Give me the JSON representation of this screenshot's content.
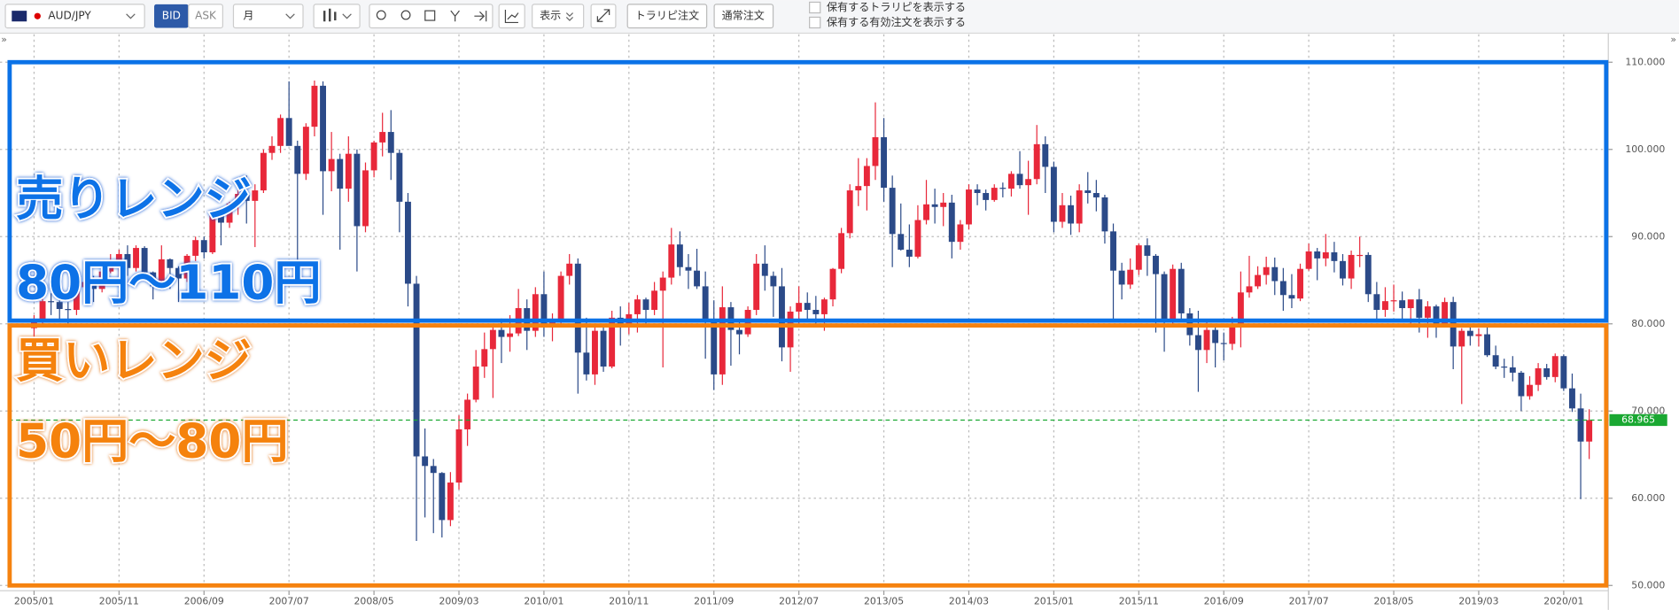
{
  "toolbar": {
    "symbol": "AUD/JPY",
    "bid": "BID",
    "ask": "ASK",
    "period": "月",
    "display": "表示",
    "trarepi_order": "トラリピ注文",
    "normal_order": "通常注文",
    "checkboxes": [
      "保有するトラリピを表示する",
      "保有する有効注文を表示する"
    ]
  },
  "chart_data": {
    "type": "candlestick",
    "up_color": "#e8283a",
    "down_color": "#2b4a88",
    "candles": [
      [
        79.5,
        81,
        78.5,
        80.5
      ],
      [
        80.5,
        83,
        79.8,
        82.6
      ],
      [
        82.6,
        83.5,
        81,
        82.5
      ],
      [
        82.5,
        83,
        80.5,
        81.7
      ],
      [
        81.7,
        82.5,
        80,
        81.6
      ],
      [
        81.6,
        85,
        81,
        84.2
      ],
      [
        84.2,
        86,
        83.2,
        84.8
      ],
      [
        84.8,
        85.5,
        82.5,
        84
      ],
      [
        84,
        86.4,
        83.6,
        86
      ],
      [
        86,
        88,
        85.8,
        87
      ],
      [
        87,
        88.5,
        85.5,
        88
      ],
      [
        88,
        89,
        85.5,
        86.4
      ],
      [
        86.4,
        89,
        86,
        88.7
      ],
      [
        88.7,
        88.9,
        85,
        85.9
      ],
      [
        85.9,
        86,
        82.8,
        84.3
      ],
      [
        84.3,
        89,
        84,
        87.4
      ],
      [
        87.4,
        87.5,
        84,
        86.4
      ],
      [
        86.4,
        86.6,
        82.5,
        85.2
      ],
      [
        85.2,
        88,
        84.8,
        87.8
      ],
      [
        87.8,
        90,
        87.2,
        89.6
      ],
      [
        89.6,
        90,
        87.5,
        88.2
      ],
      [
        88.2,
        93,
        88,
        92.8
      ],
      [
        92.8,
        93.2,
        89,
        91.6
      ],
      [
        91.6,
        94,
        91,
        93.8
      ],
      [
        93.8,
        96,
        92.5,
        94.9
      ],
      [
        94.9,
        97,
        91.5,
        94.1
      ],
      [
        94.1,
        96,
        88.8,
        95.3
      ],
      [
        95.3,
        100,
        95,
        99.6
      ],
      [
        99.6,
        101.5,
        98.8,
        100.4
      ],
      [
        100.4,
        104,
        99.6,
        103.6
      ],
      [
        103.6,
        107.8,
        100.6,
        100.4
      ],
      [
        100.4,
        101,
        87.2,
        97.2
      ],
      [
        97.2,
        103,
        96.5,
        102.6
      ],
      [
        102.6,
        107.9,
        101.5,
        107.3
      ],
      [
        107.3,
        107.8,
        92.5,
        97.5
      ],
      [
        97.5,
        102,
        95.2,
        98.9
      ],
      [
        98.9,
        99.5,
        88.5,
        95.5
      ],
      [
        95.5,
        101.5,
        94,
        99.5
      ],
      [
        99.5,
        100,
        86,
        91.2
      ],
      [
        91.2,
        98.5,
        90.5,
        97.6
      ],
      [
        97.6,
        101,
        96.8,
        100.8
      ],
      [
        100.8,
        104.2,
        99.2,
        102
      ],
      [
        102,
        104.5,
        96.5,
        99.6
      ],
      [
        99.6,
        100,
        90.5,
        94
      ],
      [
        94,
        95,
        82,
        84.6
      ],
      [
        84.6,
        85.5,
        55.1,
        64.8
      ],
      [
        64.8,
        68,
        57.8,
        63.7
      ],
      [
        63.7,
        64.5,
        56,
        62.9
      ],
      [
        62.9,
        63,
        55.5,
        57.5
      ],
      [
        57.5,
        63,
        56.8,
        61.8
      ],
      [
        61.8,
        69.5,
        61,
        67.9
      ],
      [
        67.9,
        72,
        66,
        71.3
      ],
      [
        71.3,
        77,
        71,
        75.1
      ],
      [
        75.1,
        79,
        73.8,
        77.1
      ],
      [
        77.1,
        80,
        71.5,
        79.3
      ],
      [
        79.3,
        80.6,
        75.5,
        78.5
      ],
      [
        78.5,
        81,
        76.8,
        78.9
      ],
      [
        78.9,
        84,
        78.6,
        81.8
      ],
      [
        81.8,
        82.8,
        77,
        79.2
      ],
      [
        79.2,
        84.2,
        78.5,
        83.4
      ],
      [
        83.4,
        86,
        78.5,
        79.6
      ],
      [
        79.6,
        81.2,
        78,
        80.3
      ],
      [
        80.3,
        86,
        80,
        85.5
      ],
      [
        85.5,
        88,
        84.5,
        86.9
      ],
      [
        86.9,
        87.5,
        72,
        76.7
      ],
      [
        76.7,
        80.7,
        73.5,
        74.2
      ],
      [
        74.2,
        80,
        73,
        79.2
      ],
      [
        79.2,
        80,
        74.5,
        75.1
      ],
      [
        75.1,
        81.5,
        74.9,
        80.7
      ],
      [
        80.7,
        82,
        77.5,
        79.8
      ],
      [
        79.8,
        82.4,
        78.8,
        81.1
      ],
      [
        81.1,
        83.3,
        79,
        82.8
      ],
      [
        82.8,
        83,
        79.6,
        81.6
      ],
      [
        81.6,
        84.8,
        81,
        83.8
      ],
      [
        83.8,
        86,
        75,
        85.3
      ],
      [
        85.3,
        91,
        84.5,
        89.1
      ],
      [
        89.1,
        90.6,
        85.5,
        86.5
      ],
      [
        86.5,
        88,
        84,
        86.1
      ],
      [
        86.1,
        88.6,
        84,
        84.3
      ],
      [
        84.3,
        86,
        76,
        80.3
      ],
      [
        80.3,
        82.7,
        72.4,
        74.2
      ],
      [
        74.2,
        84.3,
        73,
        81.9
      ],
      [
        81.9,
        82.5,
        75.2,
        79.3
      ],
      [
        79.3,
        80.5,
        76.5,
        78.8
      ],
      [
        78.8,
        82,
        78.5,
        81.6
      ],
      [
        81.6,
        88,
        81,
        86.9
      ],
      [
        86.9,
        89,
        83.8,
        85.5
      ],
      [
        85.5,
        86,
        80.8,
        84.3
      ],
      [
        84.3,
        86.4,
        75.7,
        77.3
      ],
      [
        77.3,
        82,
        74.5,
        81.4
      ],
      [
        81.4,
        84.3,
        79.8,
        82.4
      ],
      [
        82.4,
        83.6,
        80.5,
        81.6
      ],
      [
        81.6,
        83.2,
        79.8,
        81.1
      ],
      [
        81.1,
        83,
        79.2,
        82.8
      ],
      [
        82.8,
        86.4,
        82,
        86.3
      ],
      [
        86.3,
        91,
        85.8,
        90.4
      ],
      [
        90.4,
        96,
        89.8,
        95.3
      ],
      [
        95.3,
        99,
        93.5,
        95.8
      ],
      [
        95.8,
        99,
        93,
        98.1
      ],
      [
        98.1,
        105.4,
        96.5,
        101.4
      ],
      [
        101.4,
        103.6,
        94,
        95.6
      ],
      [
        95.6,
        97,
        86.5,
        90.3
      ],
      [
        90.3,
        93.8,
        88.4,
        88.5
      ],
      [
        88.5,
        91.4,
        86.5,
        87.7
      ],
      [
        87.7,
        93.6,
        87.5,
        91.9
      ],
      [
        91.9,
        96.5,
        91.4,
        93.7
      ],
      [
        93.7,
        95.5,
        91.5,
        93.4
      ],
      [
        93.4,
        95,
        91.2,
        93.9
      ],
      [
        93.9,
        94.8,
        87.5,
        89.4
      ],
      [
        89.4,
        91.9,
        88.5,
        91.4
      ],
      [
        91.4,
        96,
        90.8,
        95.4
      ],
      [
        95.4,
        96,
        93.6,
        95
      ],
      [
        95,
        95.4,
        93,
        94.2
      ],
      [
        94.2,
        96,
        94,
        95.6
      ],
      [
        95.6,
        96.2,
        94.5,
        95.5
      ],
      [
        95.5,
        97.5,
        94.6,
        97.2
      ],
      [
        97.2,
        99.8,
        95.5,
        95.9
      ],
      [
        95.9,
        98.7,
        92.5,
        96.6
      ],
      [
        96.6,
        102.8,
        96,
        100.6
      ],
      [
        100.6,
        101.5,
        95,
        98
      ],
      [
        98,
        98.6,
        90.5,
        91.7
      ],
      [
        91.7,
        95,
        91,
        93.6
      ],
      [
        93.6,
        94.7,
        90.2,
        91.5
      ],
      [
        91.5,
        96,
        90.5,
        95.3
      ],
      [
        95.3,
        97.4,
        93.8,
        95
      ],
      [
        95,
        96.5,
        92.9,
        94.5
      ],
      [
        94.5,
        94.8,
        89.2,
        90.6
      ],
      [
        90.6,
        91.5,
        80.5,
        86.1
      ],
      [
        86.1,
        87,
        82.8,
        84.5
      ],
      [
        84.5,
        87.5,
        84,
        86.2
      ],
      [
        86.2,
        89.2,
        85.6,
        89
      ],
      [
        89,
        89.8,
        85.5,
        87.8
      ],
      [
        87.8,
        88,
        79,
        85.7
      ],
      [
        85.7,
        86,
        76.8,
        80.3
      ],
      [
        80.3,
        86.8,
        80,
        86.3
      ],
      [
        86.3,
        87,
        80.2,
        81.2
      ],
      [
        81.2,
        81.8,
        77.5,
        78.7
      ],
      [
        78.7,
        81.5,
        72.2,
        77
      ],
      [
        77,
        80.5,
        75.5,
        79.3
      ],
      [
        79.3,
        79.8,
        75,
        77.8
      ],
      [
        77.8,
        79,
        75.8,
        77.7
      ],
      [
        77.7,
        80.8,
        77,
        79.9
      ],
      [
        79.9,
        86,
        77.3,
        83.6
      ],
      [
        83.6,
        87.8,
        83,
        84.3
      ],
      [
        84.3,
        86.6,
        84,
        85.6
      ],
      [
        85.6,
        87.7,
        84.5,
        86.5
      ],
      [
        86.5,
        87.6,
        83.3,
        84.9
      ],
      [
        84.9,
        86.4,
        81.5,
        83.3
      ],
      [
        83.3,
        85.7,
        81.8,
        82.9
      ],
      [
        82.9,
        86.9,
        82.6,
        86.3
      ],
      [
        86.3,
        89.2,
        86.1,
        88.3
      ],
      [
        88.3,
        88.7,
        85,
        87.5
      ],
      [
        87.5,
        90.3,
        86.6,
        88.2
      ],
      [
        88.2,
        89.4,
        85.9,
        87.2
      ],
      [
        87.2,
        88,
        84.4,
        85.2
      ],
      [
        85.2,
        88.4,
        84,
        87.9
      ],
      [
        87.9,
        90,
        86.5,
        87.9
      ],
      [
        87.9,
        88.2,
        82.5,
        83.4
      ],
      [
        83.4,
        84.8,
        80.4,
        81.6
      ],
      [
        81.6,
        84.2,
        80.8,
        82.6
      ],
      [
        82.6,
        84.5,
        81.4,
        82.7
      ],
      [
        82.7,
        83.7,
        80.4,
        81.8
      ],
      [
        81.8,
        82.5,
        80,
        82.8
      ],
      [
        82.8,
        84,
        79,
        80.7
      ],
      [
        80.7,
        82.6,
        78.4,
        82
      ],
      [
        82,
        82.2,
        78.4,
        80
      ],
      [
        80,
        83,
        79.6,
        82.5
      ],
      [
        82.5,
        83.1,
        74.8,
        77.4
      ],
      [
        77.4,
        79.5,
        70.8,
        79.2
      ],
      [
        79.2,
        79.7,
        77.5,
        78.6
      ],
      [
        78.6,
        79.5,
        77.4,
        78.8
      ],
      [
        78.8,
        79.8,
        76.2,
        76.4
      ],
      [
        76.4,
        77.5,
        74.8,
        75.1
      ],
      [
        75.1,
        76,
        73.8,
        75
      ],
      [
        75,
        76.3,
        73.4,
        74.4
      ],
      [
        74.4,
        74.6,
        70,
        71.7
      ],
      [
        71.7,
        74,
        71.3,
        73
      ],
      [
        73,
        75.5,
        72.3,
        74.9
      ],
      [
        74.9,
        75.4,
        73.6,
        73.9
      ],
      [
        73.9,
        76.6,
        73.3,
        76.3
      ],
      [
        76.3,
        76.5,
        72.3,
        72.6
      ],
      [
        72.6,
        74.3,
        69.9,
        70.3
      ],
      [
        70.3,
        72,
        59.9,
        66.5
      ],
      [
        66.5,
        70.2,
        64.5,
        68.965
      ]
    ],
    "xlim": [
      -3,
      185
    ],
    "xticks": [
      {
        "value": 0,
        "label": "2005/01"
      },
      {
        "value": 10,
        "label": "2005/11"
      },
      {
        "value": 20,
        "label": "2006/09"
      },
      {
        "value": 30,
        "label": "2007/07"
      },
      {
        "value": 40,
        "label": "2008/05"
      },
      {
        "value": 50,
        "label": "2009/03"
      },
      {
        "value": 60,
        "label": "2010/01"
      },
      {
        "value": 70,
        "label": "2010/11"
      },
      {
        "value": 80,
        "label": "2011/09"
      },
      {
        "value": 90,
        "label": "2012/07"
      },
      {
        "value": 100,
        "label": "2013/05"
      },
      {
        "value": 110,
        "label": "2014/03"
      },
      {
        "value": 120,
        "label": "2015/01"
      },
      {
        "value": 130,
        "label": "2015/11"
      },
      {
        "value": 140,
        "label": "2016/09"
      },
      {
        "value": 150,
        "label": "2017/07"
      },
      {
        "value": 160,
        "label": "2018/05"
      },
      {
        "value": 170,
        "label": "2019/03"
      },
      {
        "value": 180,
        "label": "2020/01"
      }
    ],
    "ylim": [
      49.4,
      113.2
    ],
    "yticks": [
      {
        "value": 50,
        "label": "50.000"
      },
      {
        "value": 60,
        "label": "60.000"
      },
      {
        "value": 70,
        "label": "70.000"
      },
      {
        "value": 80,
        "label": "80.000"
      },
      {
        "value": 90,
        "label": "90.000"
      },
      {
        "value": 100,
        "label": "100.000"
      },
      {
        "value": 110,
        "label": "110.000"
      }
    ],
    "grid": true,
    "current_price": 68.965,
    "current_color": "#1aa832",
    "zones": [
      {
        "low": 80,
        "high": 110,
        "color": "#0b72e7",
        "labels": [
          "売りレンジ",
          "80円～110円"
        ]
      },
      {
        "low": 50,
        "high": 80,
        "color": "#f5820f",
        "labels": [
          "買いレンジ",
          "50円～80円"
        ]
      }
    ]
  }
}
